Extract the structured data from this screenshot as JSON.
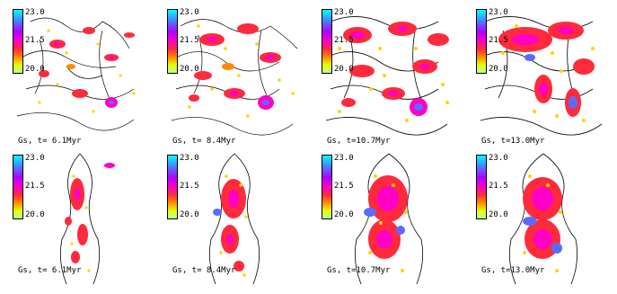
{
  "colorbar": {
    "ticks": [
      "23.0",
      "21.5",
      "20.0"
    ],
    "gradient": [
      "#00ffff",
      "#4a7cff",
      "#b000ff",
      "#ff00c8",
      "#ff2a3c",
      "#ff8a00",
      "#e6ff00",
      "#b8ff9a"
    ]
  },
  "rows": [
    {
      "view": "face-on",
      "panels": [
        {
          "label": "Gs, t= 6.1Myr"
        },
        {
          "label": "Gs, t= 8.4Myr"
        },
        {
          "label": "Gs, t=10.7Myr"
        },
        {
          "label": "Gs, t=13.0Myr"
        }
      ]
    },
    {
      "view": "edge-on",
      "panels": [
        {
          "label": "Gs, t= 6.1Myr"
        },
        {
          "label": "Gs, t= 8.4Myr"
        },
        {
          "label": "Gs, t=10.7Myr"
        },
        {
          "label": "Gs, t=13.0Myr"
        }
      ]
    }
  ],
  "colors": {
    "contour": "#000000",
    "low": "#ffd400",
    "mid": "#ff2a3c",
    "high": "#ff00c8",
    "peak": "#5a6cff"
  }
}
